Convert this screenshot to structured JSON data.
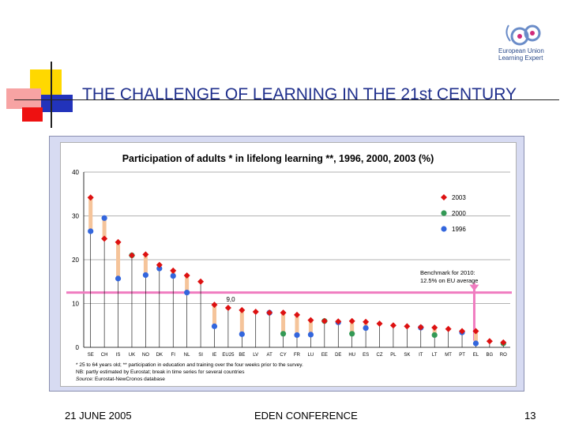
{
  "slide": {
    "title": "THE CHALLENGE OF LEARNING IN THE 21st CENTURY",
    "logo": {
      "line1": "European Union",
      "line2": "Learning Expert",
      "line3": ""
    },
    "footer": {
      "date": "21 JUNE 2005",
      "conference": "EDEN CONFERENCE",
      "page": "13"
    },
    "colors": {
      "title": "#1f2f8c",
      "panel": "#d7dbf2",
      "deco_yellow": "#ffd800",
      "deco_red": "#ee1111",
      "deco_blue": "#2233bb"
    }
  },
  "chart_data": {
    "type": "scatter",
    "title": "Participation of adults * in lifelong learning **, 1996, 2000, 2003 (%)",
    "xlabel": "",
    "ylabel": "",
    "ylim": [
      0,
      40
    ],
    "yticks": [
      0,
      10,
      20,
      30,
      40
    ],
    "grid": true,
    "legend_position": "top-right",
    "categories": [
      "SE",
      "CH",
      "IS",
      "UK",
      "NO",
      "DK",
      "FI",
      "NL",
      "SI",
      "IE",
      "EU25",
      "BE",
      "LV",
      "AT",
      "CY",
      "FR",
      "LU",
      "EE",
      "DE",
      "HU",
      "ES",
      "CZ",
      "PL",
      "SK",
      "IT",
      "LT",
      "MT",
      "PT",
      "EL",
      "BG",
      "RO"
    ],
    "series": [
      {
        "name": "2003",
        "color": "#dd1111",
        "marker": "diamond",
        "values": [
          34.2,
          24.8,
          24.0,
          21.0,
          21.2,
          18.8,
          17.5,
          16.4,
          15.0,
          9.7,
          9.0,
          8.5,
          8.1,
          7.9,
          7.9,
          7.4,
          6.2,
          6.0,
          5.9,
          6.0,
          5.8,
          5.4,
          5.0,
          4.8,
          4.6,
          4.5,
          4.2,
          3.7,
          3.7,
          1.4,
          1.1
        ]
      },
      {
        "name": "2000",
        "color": "#339955",
        "marker": "circle",
        "values": [
          null,
          null,
          null,
          21.0,
          null,
          null,
          null,
          null,
          null,
          null,
          null,
          null,
          null,
          null,
          3.1,
          null,
          null,
          6.0,
          null,
          3.1,
          null,
          null,
          null,
          null,
          null,
          2.8,
          null,
          null,
          null,
          null,
          0.9
        ]
      },
      {
        "name": "1996",
        "color": "#3366dd",
        "marker": "circle",
        "values": [
          26.5,
          29.5,
          15.7,
          null,
          16.5,
          18.0,
          16.3,
          12.5,
          null,
          4.8,
          null,
          3.0,
          null,
          7.9,
          null,
          2.8,
          2.9,
          null,
          5.7,
          null,
          4.4,
          null,
          null,
          null,
          4.5,
          null,
          null,
          3.4,
          0.9,
          null,
          null
        ]
      }
    ],
    "benchmark": {
      "value": 12.5,
      "color": "#f07cc0",
      "label_line1": "Benchmark for 2010:",
      "label_line2": "12.5% on EU average"
    },
    "annotation": "9,0",
    "notes": [
      "* 25 to 64 years old;    ** participation in education and training over the four weeks prior to the survey.",
      "NB: partly estimated by Eurostat; break in time series  for several countries"
    ],
    "source_label": "Source:",
    "source_text": "Eurostat-NewCronos database"
  }
}
